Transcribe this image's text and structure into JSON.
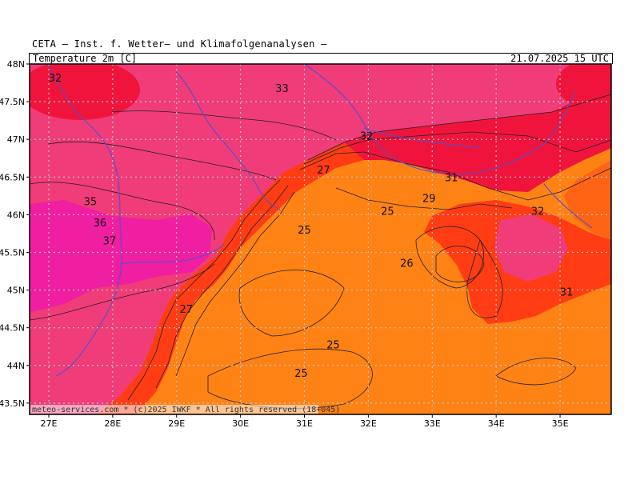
{
  "header": {
    "title": "CETA — Inst. f. Wetter— und Klimafolgenanalysen —",
    "field": "Temperature 2m [C]",
    "valid_time": "21.07.2025 15 UTC"
  },
  "map": {
    "credit": "meteo-services.com * (c)2025 IWKF * All rights reserved (18+045)",
    "lat_labels": [
      "48N",
      "47.5N",
      "47N",
      "46.5N",
      "46N",
      "45.5N",
      "45N",
      "44.5N",
      "44N",
      "43.5N"
    ],
    "lon_labels": [
      "27E",
      "28E",
      "29E",
      "30E",
      "31E",
      "32E",
      "33E",
      "34E",
      "35E"
    ],
    "lon_range": [
      26.7,
      35.8
    ],
    "lat_range": [
      43.35,
      48.0
    ],
    "colors": {
      "t37": "#f01ea0",
      "t33": "#f03c78",
      "t31": "#f0143c",
      "t29": "#ff3c14",
      "t27": "#ff6414",
      "t25": "#ff8214",
      "t24": "#ff9628",
      "grid": "#c8c8c8",
      "border": "#5050d2"
    },
    "contour_labels": [
      {
        "text": "32",
        "lon": 27.1,
        "lat": 47.82
      },
      {
        "text": "33",
        "lon": 30.65,
        "lat": 47.68
      },
      {
        "text": "32",
        "lon": 31.97,
        "lat": 47.05
      },
      {
        "text": "27",
        "lon": 31.3,
        "lat": 46.6
      },
      {
        "text": "31",
        "lon": 33.3,
        "lat": 46.5
      },
      {
        "text": "29",
        "lon": 32.95,
        "lat": 46.22
      },
      {
        "text": "25",
        "lon": 32.3,
        "lat": 46.05
      },
      {
        "text": "32",
        "lon": 34.65,
        "lat": 46.05
      },
      {
        "text": "35",
        "lon": 27.65,
        "lat": 46.18
      },
      {
        "text": "36",
        "lon": 27.8,
        "lat": 45.9
      },
      {
        "text": "37",
        "lon": 27.95,
        "lat": 45.66
      },
      {
        "text": "25",
        "lon": 31.0,
        "lat": 45.8
      },
      {
        "text": "26",
        "lon": 32.6,
        "lat": 45.36
      },
      {
        "text": "31",
        "lon": 35.1,
        "lat": 44.98
      },
      {
        "text": "27",
        "lon": 29.15,
        "lat": 44.75
      },
      {
        "text": "25",
        "lon": 31.45,
        "lat": 44.28
      },
      {
        "text": "25",
        "lon": 30.95,
        "lat": 43.9
      }
    ]
  }
}
